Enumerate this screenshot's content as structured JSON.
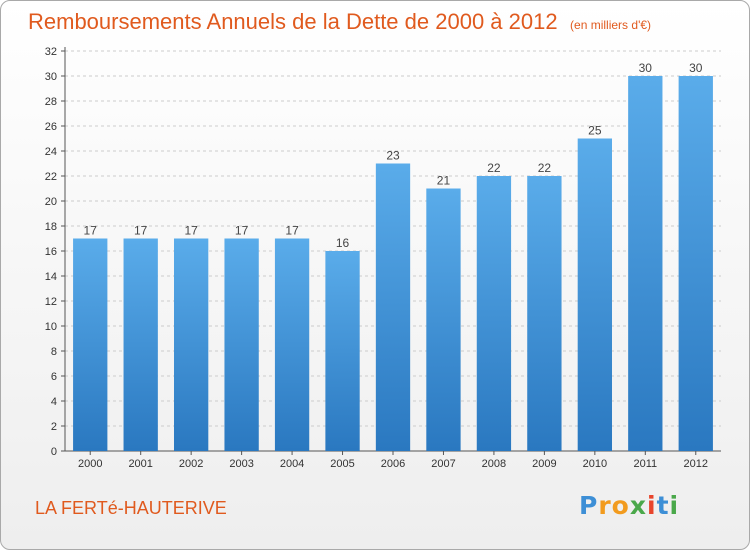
{
  "header": {
    "title": "Remboursements Annuels de la Dette de 2000 à 2012",
    "unit": "(en milliers d'€)"
  },
  "footer": {
    "commune": "LA FERTé-HAUTERIVE",
    "logo_letters": [
      {
        "char": "P",
        "color": "#3d8fd6"
      },
      {
        "char": "r",
        "color": "#f29b1e"
      },
      {
        "char": "o",
        "color": "#f29b1e"
      },
      {
        "char": "x",
        "color": "#4aa84a"
      },
      {
        "char": "i",
        "color": "#e8452c"
      },
      {
        "char": "t",
        "color": "#3d8fd6"
      },
      {
        "char": "i",
        "color": "#4aa84a"
      }
    ]
  },
  "colors": {
    "title": "#e05a1e",
    "bar_top": "#5aacea",
    "bar_bottom": "#2a78c0",
    "grid": "#cccccc"
  },
  "chart_data": {
    "type": "bar",
    "title": "Remboursements Annuels de la Dette de 2000 à 2012",
    "xlabel": "",
    "ylabel": "",
    "categories": [
      "2000",
      "2001",
      "2002",
      "2003",
      "2004",
      "2005",
      "2006",
      "2007",
      "2008",
      "2009",
      "2010",
      "2011",
      "2012"
    ],
    "values": [
      17,
      17,
      17,
      17,
      17,
      16,
      23,
      21,
      22,
      22,
      25,
      30,
      30
    ],
    "ylim": [
      0,
      32
    ],
    "yticks": [
      0,
      2,
      4,
      6,
      8,
      10,
      12,
      14,
      16,
      18,
      20,
      22,
      24,
      26,
      28,
      30,
      32
    ],
    "grid": true,
    "legend": "none"
  }
}
